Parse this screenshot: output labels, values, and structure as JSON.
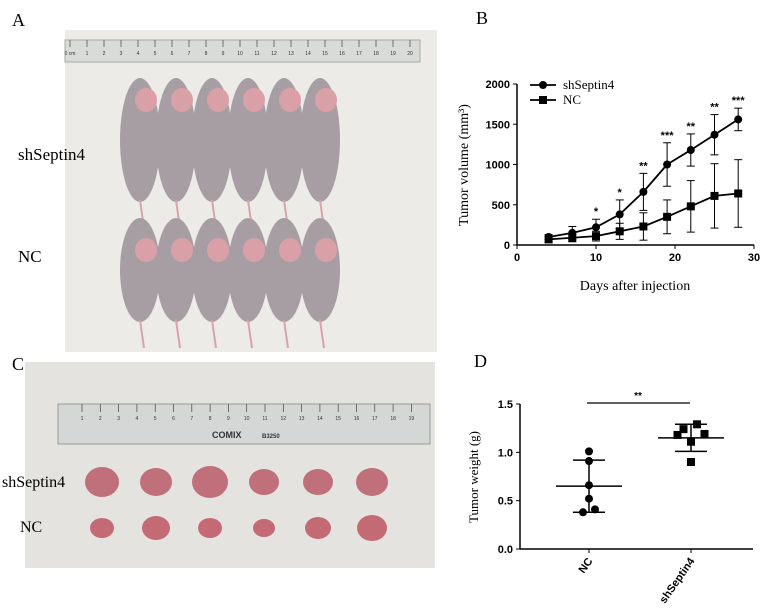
{
  "panels": {
    "A": {
      "label": "A",
      "group_labels": [
        "shSeptin4",
        "NC"
      ],
      "ruler_ticks": [
        "0 cm",
        "1",
        "2",
        "3",
        "4",
        "5",
        "6",
        "7",
        "8",
        "9",
        "10",
        "11",
        "12",
        "13",
        "14",
        "15",
        "16",
        "17",
        "18",
        "19",
        "20"
      ]
    },
    "C": {
      "label": "C",
      "group_labels": [
        "shSeptin4",
        "NC"
      ],
      "ruler_brand": "COMIX",
      "ruler_model": "B3250",
      "ruler_ticks": [
        "1",
        "2",
        "3",
        "4",
        "5",
        "6",
        "7",
        "8",
        "9",
        "10",
        "11",
        "12",
        "13",
        "14",
        "15",
        "16",
        "17",
        "18",
        "19"
      ]
    },
    "B": {
      "label": "B"
    },
    "D": {
      "label": "D"
    }
  },
  "chart_data": [
    {
      "panel": "B",
      "type": "line",
      "xlabel": "Days after injection",
      "ylabel": "Tumor volume (mm³)",
      "xlim": [
        0,
        30
      ],
      "ylim": [
        0,
        2000
      ],
      "xticks": [
        0,
        10,
        20,
        30
      ],
      "yticks": [
        0,
        500,
        1000,
        1500,
        2000
      ],
      "grid": false,
      "legend": "top-left",
      "x": [
        4,
        7,
        10,
        13,
        16,
        19,
        22,
        25,
        28
      ],
      "series": [
        {
          "name": "shSeptin4",
          "marker": "circle",
          "values": [
            100,
            150,
            220,
            380,
            660,
            1000,
            1180,
            1370,
            1560
          ],
          "error": [
            30,
            80,
            100,
            180,
            230,
            270,
            200,
            250,
            140
          ]
        },
        {
          "name": "NC",
          "marker": "square",
          "values": [
            70,
            90,
            110,
            170,
            230,
            350,
            480,
            610,
            640
          ],
          "error": [
            40,
            50,
            60,
            100,
            170,
            210,
            320,
            400,
            420
          ]
        }
      ],
      "annotations": [
        {
          "x": 10,
          "text": "*"
        },
        {
          "x": 13,
          "text": "*"
        },
        {
          "x": 16,
          "text": "**"
        },
        {
          "x": 19,
          "text": "***"
        },
        {
          "x": 22,
          "text": "**"
        },
        {
          "x": 25,
          "text": "**"
        },
        {
          "x": 28,
          "text": "***"
        }
      ]
    },
    {
      "panel": "D",
      "type": "scatter",
      "ylabel": "Tumor weight (g)",
      "ylim": [
        0,
        1.5
      ],
      "yticks": [
        "0.0",
        "0.5",
        "1.0",
        "1.5"
      ],
      "categories": [
        "NC",
        "shSeptin4"
      ],
      "grid": false,
      "series": [
        {
          "name": "NC",
          "marker": "circle",
          "values": [
            1.01,
            0.91,
            0.66,
            0.52,
            0.38,
            0.41
          ],
          "mean": 0.65,
          "sd": 0.27
        },
        {
          "name": "shSeptin4",
          "marker": "square",
          "values": [
            1.29,
            1.24,
            1.18,
            1.19,
            1.11,
            0.9
          ],
          "mean": 1.15,
          "sd": 0.14
        }
      ],
      "significance": "**"
    }
  ]
}
